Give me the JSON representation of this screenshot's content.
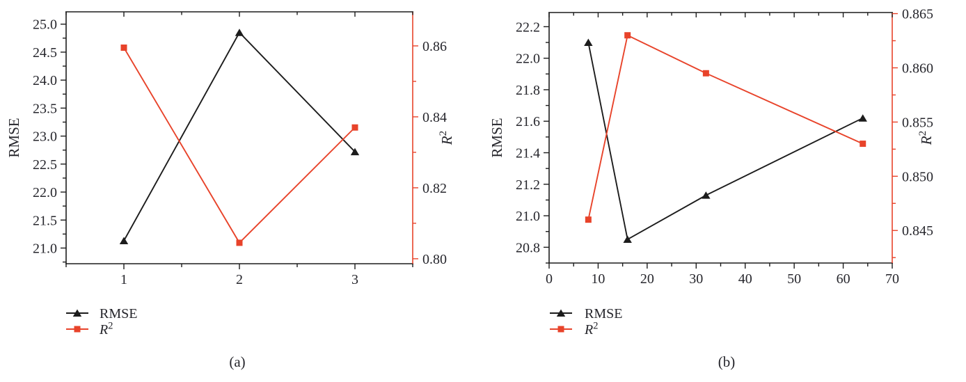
{
  "figure": {
    "background": "#ffffff",
    "text_color": "#26262c",
    "black_series_color": "#1c1c1c",
    "red_accent_color": "#e8432a"
  },
  "chart_data": [
    {
      "id": "a",
      "type": "line",
      "caption": "(a)",
      "x_axis": {
        "range": [
          0.5,
          3.5
        ],
        "major_ticks": [
          1,
          2,
          3
        ],
        "tick_labels": [
          "1",
          "2",
          "3"
        ],
        "minor_ticks": [
          0.5,
          1.5,
          2.5,
          3.5
        ]
      },
      "left_axis": {
        "label": "RMSE",
        "range": [
          20.72,
          25.22
        ],
        "major_ticks": [
          21.0,
          21.5,
          22.0,
          22.5,
          23.0,
          23.5,
          24.0,
          24.5,
          25.0
        ],
        "tick_labels": [
          "21.0",
          "21.5",
          "22.0",
          "22.5",
          "23.0",
          "23.5",
          "24.0",
          "24.5",
          "25.0"
        ],
        "minor_ticks": [
          20.75,
          21.25,
          21.75,
          22.25,
          22.75,
          23.25,
          23.75,
          24.25,
          24.75
        ],
        "color": "#1c1c1c"
      },
      "right_axis": {
        "label": "R²",
        "range": [
          0.7986,
          0.8696
        ],
        "major_ticks": [
          0.8,
          0.82,
          0.84,
          0.86
        ],
        "tick_labels": [
          "0.80",
          "0.82",
          "0.84",
          "0.86"
        ],
        "minor_ticks": [
          0.81,
          0.83,
          0.85
        ],
        "color": "#e8432a"
      },
      "series": [
        {
          "name": "RMSE",
          "axis": "left",
          "marker": "triangle-up",
          "color": "#1c1c1c",
          "x": [
            1,
            2,
            3
          ],
          "y": [
            21.13,
            24.85,
            22.72
          ]
        },
        {
          "name": "R²",
          "axis": "right",
          "marker": "square",
          "color": "#e8432a",
          "x": [
            1,
            2,
            3
          ],
          "y": [
            0.8595,
            0.8045,
            0.837
          ]
        }
      ],
      "legend": {
        "position": "bottom-left",
        "items": [
          {
            "label": "RMSE",
            "marker": "triangle-up",
            "color": "#1c1c1c"
          },
          {
            "label": "R²",
            "marker": "square",
            "color": "#e8432a"
          }
        ]
      }
    },
    {
      "id": "b",
      "type": "line",
      "caption": "(b)",
      "x_axis": {
        "range": [
          0,
          70
        ],
        "major_ticks": [
          0,
          10,
          20,
          30,
          40,
          50,
          60,
          70
        ],
        "tick_labels": [
          "0",
          "10",
          "20",
          "30",
          "40",
          "50",
          "60",
          "70"
        ],
        "minor_ticks": [
          5,
          15,
          25,
          35,
          45,
          55,
          65
        ]
      },
      "left_axis": {
        "label": "RMSE",
        "range": [
          20.7,
          22.29
        ],
        "major_ticks": [
          20.8,
          21.0,
          21.2,
          21.4,
          21.6,
          21.8,
          22.0,
          22.2
        ],
        "tick_labels": [
          "20.8",
          "21.0",
          "21.2",
          "21.4",
          "21.6",
          "21.8",
          "22.0",
          "22.2"
        ],
        "minor_ticks": [
          20.7,
          20.9,
          21.1,
          21.3,
          21.5,
          21.7,
          21.9,
          22.1
        ],
        "color": "#1c1c1c"
      },
      "right_axis": {
        "label": "R²",
        "range": [
          0.842,
          0.8651
        ],
        "major_ticks": [
          0.845,
          0.85,
          0.855,
          0.86,
          0.865
        ],
        "tick_labels": [
          "0.845",
          "0.850",
          "0.855",
          "0.860",
          "0.865"
        ],
        "minor_ticks": [
          0.8425,
          0.8475,
          0.8525,
          0.8575,
          0.8625
        ],
        "color": "#e8432a"
      },
      "series": [
        {
          "name": "RMSE",
          "axis": "left",
          "marker": "triangle-up",
          "color": "#1c1c1c",
          "x": [
            8,
            16,
            32,
            64
          ],
          "y": [
            22.1,
            20.85,
            21.13,
            21.62
          ]
        },
        {
          "name": "R²",
          "axis": "right",
          "marker": "square",
          "color": "#e8432a",
          "x": [
            8,
            16,
            32,
            64
          ],
          "y": [
            0.846,
            0.863,
            0.8595,
            0.853
          ]
        }
      ],
      "legend": {
        "position": "bottom-left",
        "items": [
          {
            "label": "RMSE",
            "marker": "triangle-up",
            "color": "#1c1c1c"
          },
          {
            "label": "R²",
            "marker": "square",
            "color": "#e8432a"
          }
        ]
      }
    }
  ]
}
